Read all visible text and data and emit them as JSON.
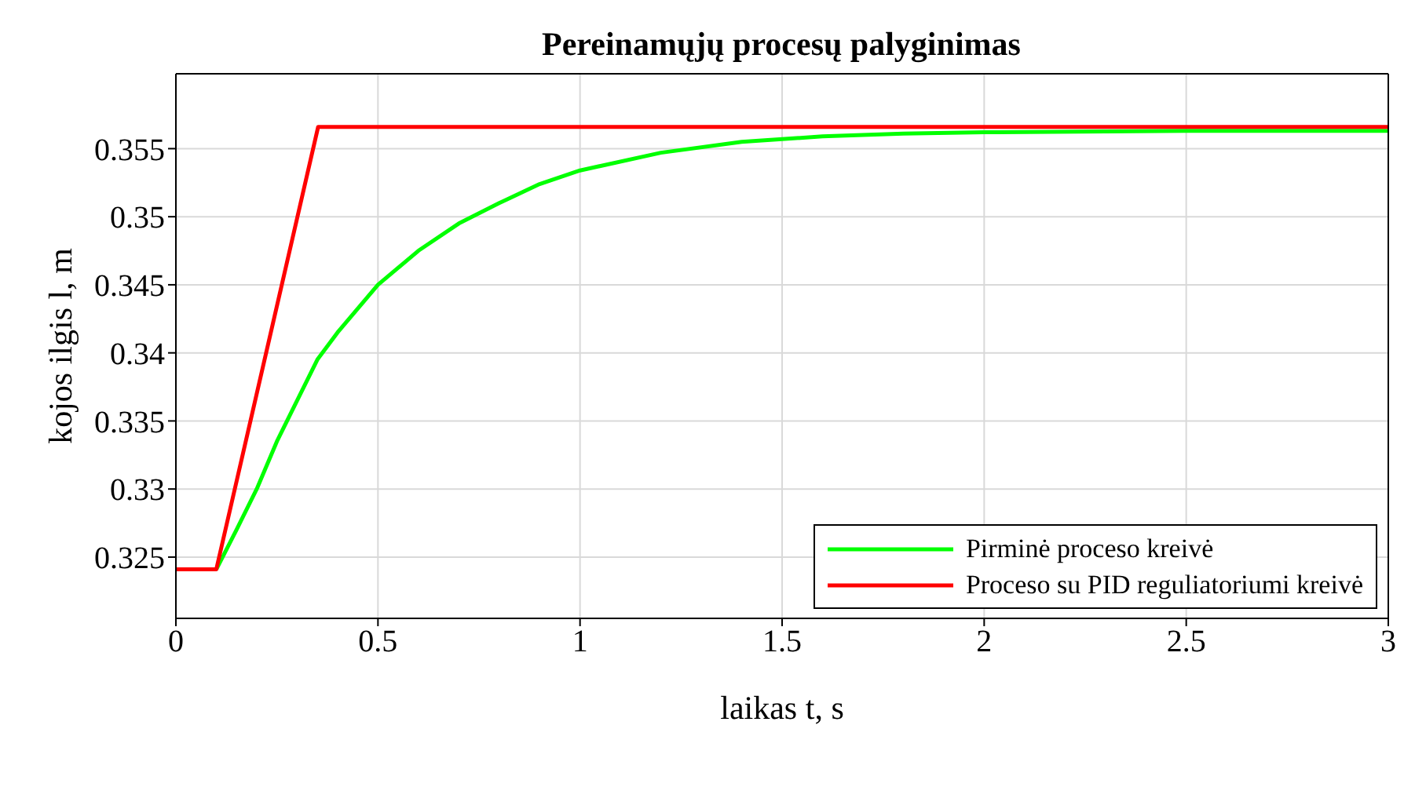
{
  "chart_data": {
    "type": "line",
    "title": "Pereinamųjų procesų palyginimas",
    "xlabel": "laikas t, s",
    "ylabel": "kojos ilgis l, m",
    "xlim": [
      0,
      3
    ],
    "xticks": [
      0,
      0.5,
      1,
      1.5,
      2,
      2.5,
      3
    ],
    "ylim": [
      0.3205,
      0.3605
    ],
    "yticks": [
      0.325,
      0.33,
      0.335,
      0.34,
      0.345,
      0.35,
      0.355
    ],
    "grid": true,
    "legend": "bottom right",
    "marker": "none",
    "line_style": "solid",
    "series": [
      {
        "name": "Pirminė proceso kreivė",
        "color": "#00ff00",
        "x": [
          0.1,
          0.15,
          0.2,
          0.25,
          0.3,
          0.35,
          0.4,
          0.5,
          0.6,
          0.7,
          0.8,
          0.9,
          1.0,
          1.2,
          1.4,
          1.6,
          1.8,
          2.0,
          2.5,
          3.0
        ],
        "values": [
          0.3241,
          0.327,
          0.33,
          0.3335,
          0.3365,
          0.3395,
          0.3415,
          0.345,
          0.3475,
          0.3495,
          0.351,
          0.3524,
          0.3534,
          0.3547,
          0.3555,
          0.3559,
          0.3561,
          0.3562,
          0.3563,
          0.3563
        ]
      },
      {
        "name": "Proceso su PID reguliatoriumi kreivė",
        "color": "#ff0000",
        "x": [
          0,
          0.1,
          0.352,
          3.0
        ],
        "values": [
          0.3241,
          0.3241,
          0.3566,
          0.3566
        ]
      }
    ]
  }
}
